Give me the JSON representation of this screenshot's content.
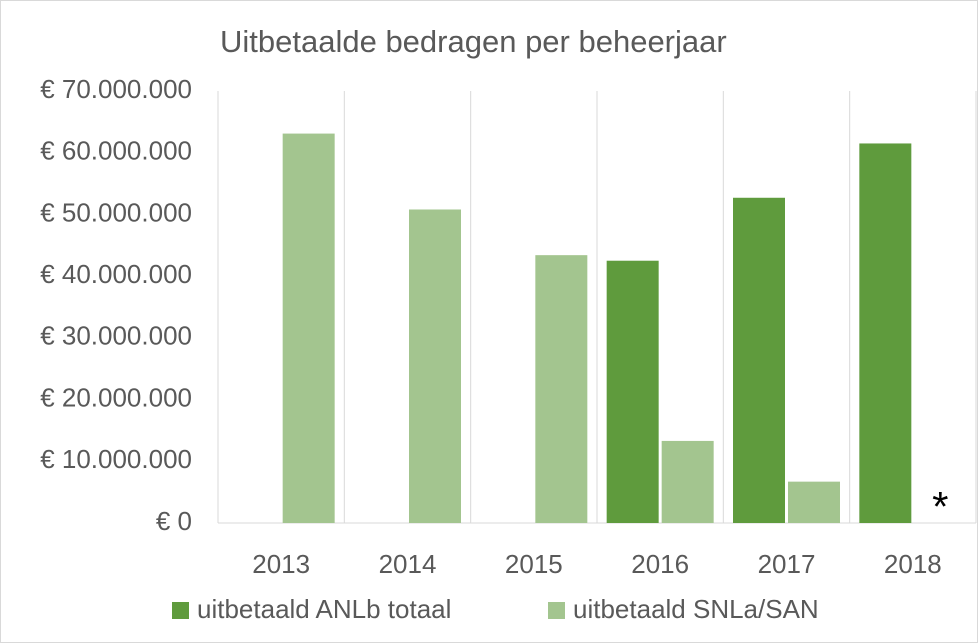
{
  "chart_data": {
    "type": "bar",
    "title": "Uitbetaalde bedragen per beheerjaar",
    "categories": [
      "2013",
      "2014",
      "2015",
      "2016",
      "2017",
      "2018"
    ],
    "series": [
      {
        "name": "uitbetaald ANLb totaal",
        "color": "#5f9b3d",
        "values": [
          null,
          null,
          null,
          42500000,
          52700000,
          61500000
        ]
      },
      {
        "name": "uitbetaald SNLa/SAN",
        "color": "#a3c58f",
        "values": [
          63100000,
          50800000,
          43400000,
          13300000,
          6700000,
          null
        ]
      }
    ],
    "ylim": [
      0,
      70000000
    ],
    "yticks": [
      {
        "value": 0,
        "label": "€ 0"
      },
      {
        "value": 10000000,
        "label": "€ 10.000.000"
      },
      {
        "value": 20000000,
        "label": "€ 20.000.000"
      },
      {
        "value": 30000000,
        "label": "€ 30.000.000"
      },
      {
        "value": 40000000,
        "label": "€ 40.000.000"
      },
      {
        "value": 50000000,
        "label": "€ 50.000.000"
      },
      {
        "value": 60000000,
        "label": "€ 60.000.000"
      },
      {
        "value": 70000000,
        "label": "€ 70.000.000"
      }
    ],
    "annotation": "*",
    "legend": "bottom"
  }
}
